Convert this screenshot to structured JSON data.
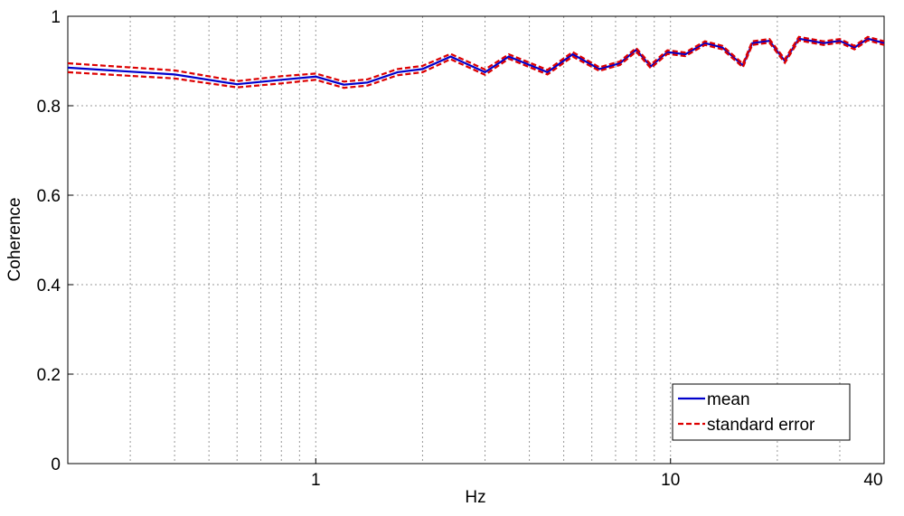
{
  "chart_data": {
    "type": "line",
    "x_label": "Hz",
    "y_label": "Coherence",
    "x_scale": "log",
    "xlim": [
      0.2,
      40
    ],
    "ylim": [
      0,
      1
    ],
    "xticks": [
      1,
      10,
      40
    ],
    "x_minor_grid": [
      0.3,
      0.4,
      0.5,
      0.6,
      0.7,
      0.8,
      0.9,
      2,
      3,
      4,
      5,
      6,
      7,
      8,
      9,
      20,
      30
    ],
    "yticks": [
      0,
      0.2,
      0.4,
      0.6,
      0.8,
      1
    ],
    "grid": true,
    "legend_position": "lower right",
    "x": [
      0.2,
      0.4,
      0.6,
      0.8,
      1,
      1.2,
      1.4,
      1.7,
      2,
      2.4,
      3,
      3.5,
      4.5,
      5.3,
      6.3,
      7.2,
      8,
      8.8,
      9.8,
      11,
      12.5,
      14,
      16,
      17,
      19,
      21,
      23,
      27,
      30,
      33,
      36,
      40
    ],
    "series": [
      {
        "name": "mean",
        "color": "#0000cc",
        "style": "solid",
        "values": [
          0.885,
          0.87,
          0.848,
          0.858,
          0.865,
          0.847,
          0.852,
          0.875,
          0.882,
          0.91,
          0.875,
          0.91,
          0.875,
          0.915,
          0.882,
          0.895,
          0.925,
          0.888,
          0.92,
          0.915,
          0.94,
          0.93,
          0.89,
          0.94,
          0.945,
          0.9,
          0.95,
          0.94,
          0.945,
          0.93,
          0.95,
          0.94
        ]
      },
      {
        "name": "standard error",
        "color": "#dd0000",
        "style": "dashed",
        "upper": [
          0.895,
          0.879,
          0.855,
          0.866,
          0.872,
          0.854,
          0.859,
          0.882,
          0.889,
          0.916,
          0.881,
          0.915,
          0.88,
          0.92,
          0.886,
          0.899,
          0.929,
          0.892,
          0.924,
          0.919,
          0.944,
          0.934,
          0.894,
          0.944,
          0.949,
          0.904,
          0.954,
          0.944,
          0.949,
          0.934,
          0.954,
          0.944
        ],
        "lower": [
          0.875,
          0.861,
          0.841,
          0.85,
          0.858,
          0.84,
          0.845,
          0.868,
          0.875,
          0.904,
          0.869,
          0.905,
          0.87,
          0.91,
          0.878,
          0.891,
          0.921,
          0.884,
          0.916,
          0.911,
          0.936,
          0.926,
          0.886,
          0.936,
          0.941,
          0.896,
          0.946,
          0.936,
          0.941,
          0.926,
          0.946,
          0.936
        ]
      }
    ]
  }
}
